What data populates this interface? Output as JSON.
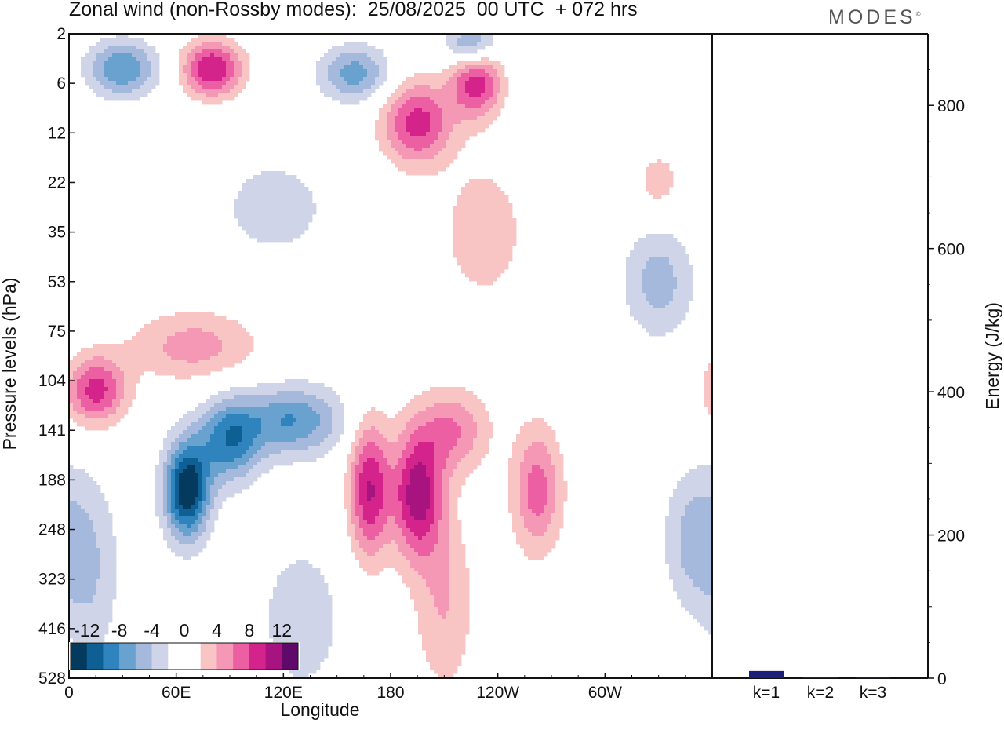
{
  "header": {
    "title": "Zonal wind (non-Rossby modes):  25/08/2025  00 UTC  + 072 hrs",
    "logo_text": "MODES",
    "logo_mark": "©"
  },
  "colors": {
    "neg": [
      "#033a5e",
      "#0e5f94",
      "#2f84bd",
      "#6aa2cf",
      "#a5b9dc",
      "#cfd4e8"
    ],
    "pos": [
      "#f8c4c4",
      "#f598b6",
      "#ec5fa2",
      "#d5238c",
      "#a7137f",
      "#5f0a6b"
    ],
    "energy_bar": "#1b1f7a"
  },
  "chart_data": [
    {
      "type": "heatmap",
      "title": "Zonal wind (non-Rossby modes)",
      "xlabel": "Longitude",
      "ylabel": "Pressure levels (hPa)",
      "x_ticks": [
        "0",
        "60E",
        "120E",
        "180",
        "120W",
        "60W"
      ],
      "y_ticks": [
        "2",
        "6",
        "12",
        "22",
        "35",
        "53",
        "75",
        "104",
        "141",
        "188",
        "248",
        "323",
        "416",
        "528"
      ],
      "colorbar": {
        "labels": [
          "-12",
          "-8",
          "-4",
          "0",
          "4",
          "8",
          "12"
        ],
        "levels": [
          -14,
          -12,
          -10,
          -8,
          -6,
          -4,
          -2,
          2,
          4,
          6,
          8,
          10,
          12,
          14
        ]
      },
      "features": [
        {
          "name": "jet-core-negative",
          "lon": 66,
          "level": 9.2,
          "value": -14,
          "lon_spread": 9,
          "level_spread": 0.7
        },
        {
          "name": "jet-band-negative-1",
          "lon": 90,
          "level": 8.2,
          "value": -9,
          "lon_spread": 12,
          "level_spread": 0.6
        },
        {
          "name": "jet-band-negative-2",
          "lon": 125,
          "level": 7.8,
          "value": -8,
          "lon_spread": 20,
          "level_spread": 0.5
        },
        {
          "name": "negative-western-lower",
          "lon": 12,
          "level": 10.8,
          "value": -4,
          "lon_spread": 12,
          "level_spread": 1.4
        },
        {
          "name": "negative-lower-120E",
          "lon": 130,
          "level": 11.8,
          "value": -3,
          "lon_spread": 20,
          "level_spread": 1.3
        },
        {
          "name": "negative-east-lower",
          "lon": 350,
          "level": 10.2,
          "value": -5,
          "lon_spread": 12,
          "level_spread": 1.0
        },
        {
          "name": "negative-upper-30E",
          "lon": 30,
          "level": 0.7,
          "value": -8,
          "lon_spread": 14,
          "level_spread": 0.4
        },
        {
          "name": "negative-upper-160E",
          "lon": 160,
          "level": 0.8,
          "value": -7,
          "lon_spread": 14,
          "level_spread": 0.4
        },
        {
          "name": "negative-upper-220",
          "lon": 225,
          "level": 0.2,
          "value": -7,
          "lon_spread": 10,
          "level_spread": 0.3
        },
        {
          "name": "negative-midlevel-290",
          "lon": 330,
          "level": 5.0,
          "value": -5,
          "lon_spread": 14,
          "level_spread": 0.8
        },
        {
          "name": "negative-strat-110E",
          "lon": 115,
          "level": 3.5,
          "value": -3,
          "lon_spread": 25,
          "level_spread": 0.8
        },
        {
          "name": "positive-core-190",
          "lon": 195,
          "level": 9.3,
          "value": 11,
          "lon_spread": 10,
          "level_spread": 0.9
        },
        {
          "name": "positive-core-170",
          "lon": 168,
          "level": 9.2,
          "value": 10,
          "lon_spread": 8,
          "level_spread": 1.0
        },
        {
          "name": "positive-band-210",
          "lon": 215,
          "level": 8.0,
          "value": 6,
          "lon_spread": 14,
          "level_spread": 0.6
        },
        {
          "name": "positive-east-260",
          "lon": 262,
          "level": 9.2,
          "value": 7,
          "lon_spread": 10,
          "level_spread": 0.9
        },
        {
          "name": "positive-tail-220",
          "lon": 210,
          "level": 11.5,
          "value": 4,
          "lon_spread": 12,
          "level_spread": 1.3
        },
        {
          "name": "positive-west-104",
          "lon": 15,
          "level": 7.2,
          "value": 9,
          "lon_spread": 12,
          "level_spread": 0.5
        },
        {
          "name": "positive-band-75",
          "lon": 70,
          "level": 6.3,
          "value": 5,
          "lon_spread": 25,
          "level_spread": 0.5
        },
        {
          "name": "positive-upper-80E",
          "lon": 80,
          "level": 0.7,
          "value": 10,
          "lon_spread": 12,
          "level_spread": 0.4
        },
        {
          "name": "positive-upper-190",
          "lon": 195,
          "level": 1.8,
          "value": 9,
          "lon_spread": 14,
          "level_spread": 0.6
        },
        {
          "name": "positive-upper-225",
          "lon": 228,
          "level": 1.0,
          "value": 9,
          "lon_spread": 10,
          "level_spread": 0.5
        },
        {
          "name": "positive-strat-230",
          "lon": 232,
          "level": 4.0,
          "value": 4,
          "lon_spread": 15,
          "level_spread": 0.9
        },
        {
          "name": "positive-strat-330",
          "lon": 330,
          "level": 3.0,
          "value": 3,
          "lon_spread": 10,
          "level_spread": 0.5
        }
      ]
    },
    {
      "type": "bar",
      "title": "",
      "ylabel": "Energy (J/kg)",
      "categories": [
        "k=1",
        "k=2",
        "k=3"
      ],
      "values": [
        10,
        2,
        1
      ],
      "ylim": [
        0,
        900
      ],
      "y_ticks": [
        "0",
        "200",
        "400",
        "600",
        "800"
      ]
    }
  ]
}
